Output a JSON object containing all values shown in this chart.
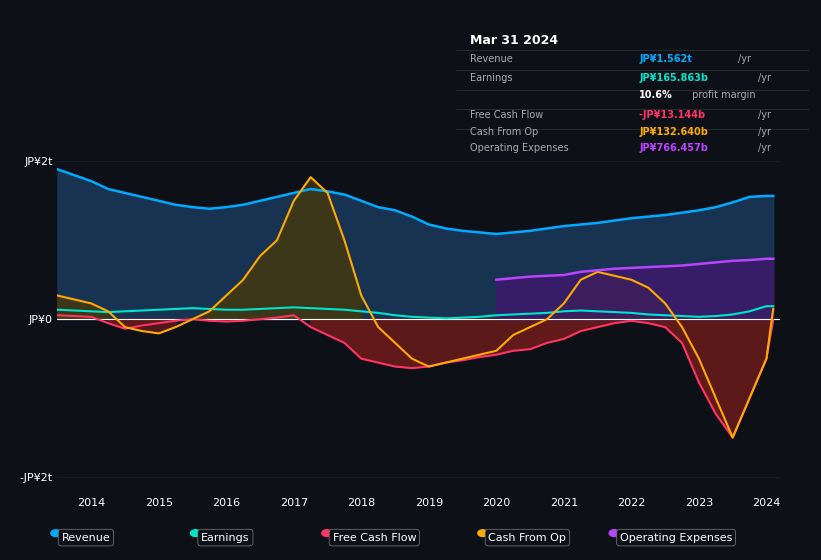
{
  "bg_color": "#0d1117",
  "plot_bg_color": "#0d1117",
  "title": "Mar 31 2024",
  "years": [
    2013.5,
    2014,
    2014.25,
    2014.5,
    2014.75,
    2015,
    2015.25,
    2015.5,
    2015.75,
    2016,
    2016.25,
    2016.5,
    2016.75,
    2017,
    2017.25,
    2017.5,
    2017.75,
    2018,
    2018.25,
    2018.5,
    2018.75,
    2019,
    2019.25,
    2019.5,
    2019.75,
    2020,
    2020.25,
    2020.5,
    2020.75,
    2021,
    2021.25,
    2021.5,
    2021.75,
    2022,
    2022.25,
    2022.5,
    2022.75,
    2023,
    2023.25,
    2023.5,
    2023.75,
    2024,
    2024.1
  ],
  "revenue": [
    1.9,
    1.75,
    1.65,
    1.6,
    1.55,
    1.5,
    1.45,
    1.42,
    1.4,
    1.42,
    1.45,
    1.5,
    1.55,
    1.6,
    1.65,
    1.62,
    1.58,
    1.5,
    1.42,
    1.38,
    1.3,
    1.2,
    1.15,
    1.12,
    1.1,
    1.08,
    1.1,
    1.12,
    1.15,
    1.18,
    1.2,
    1.22,
    1.25,
    1.28,
    1.3,
    1.32,
    1.35,
    1.38,
    1.42,
    1.48,
    1.55,
    1.562,
    1.562
  ],
  "earnings": [
    0.12,
    0.1,
    0.09,
    0.1,
    0.11,
    0.12,
    0.13,
    0.14,
    0.13,
    0.12,
    0.12,
    0.13,
    0.14,
    0.15,
    0.14,
    0.13,
    0.12,
    0.1,
    0.08,
    0.05,
    0.03,
    0.02,
    0.01,
    0.02,
    0.03,
    0.05,
    0.06,
    0.07,
    0.08,
    0.1,
    0.11,
    0.1,
    0.09,
    0.08,
    0.06,
    0.05,
    0.04,
    0.03,
    0.04,
    0.06,
    0.1,
    0.165,
    0.165
  ],
  "free_cash_flow": [
    0.05,
    0.03,
    -0.05,
    -0.12,
    -0.08,
    -0.05,
    -0.02,
    0.0,
    -0.02,
    -0.03,
    -0.02,
    0.0,
    0.02,
    0.05,
    -0.1,
    -0.2,
    -0.3,
    -0.5,
    -0.55,
    -0.6,
    -0.62,
    -0.6,
    -0.55,
    -0.52,
    -0.48,
    -0.45,
    -0.4,
    -0.38,
    -0.3,
    -0.25,
    -0.15,
    -0.1,
    -0.05,
    -0.02,
    -0.05,
    -0.1,
    -0.3,
    -0.8,
    -1.2,
    -1.5,
    -1.0,
    -0.5,
    -0.013
  ],
  "cash_from_op": [
    0.3,
    0.2,
    0.1,
    -0.1,
    -0.15,
    -0.18,
    -0.1,
    0.0,
    0.1,
    0.3,
    0.5,
    0.8,
    1.0,
    1.5,
    1.8,
    1.6,
    1.0,
    0.3,
    -0.1,
    -0.3,
    -0.5,
    -0.6,
    -0.55,
    -0.5,
    -0.45,
    -0.4,
    -0.2,
    -0.1,
    0.0,
    0.2,
    0.5,
    0.6,
    0.55,
    0.5,
    0.4,
    0.2,
    -0.1,
    -0.5,
    -1.0,
    -1.5,
    -1.0,
    -0.5,
    0.132
  ],
  "operating_expenses": [
    null,
    null,
    null,
    null,
    null,
    null,
    null,
    null,
    null,
    null,
    null,
    null,
    null,
    null,
    null,
    null,
    null,
    null,
    null,
    null,
    null,
    null,
    null,
    null,
    null,
    0.5,
    0.52,
    0.54,
    0.55,
    0.56,
    0.6,
    0.62,
    0.64,
    0.65,
    0.66,
    0.67,
    0.68,
    0.7,
    0.72,
    0.74,
    0.75,
    0.766,
    0.766
  ],
  "ylim": [
    -2.2,
    2.2
  ],
  "xlim": [
    2013.5,
    2024.2
  ],
  "yticks": [
    -2,
    0,
    2
  ],
  "ytick_labels": [
    "-JP¥2t",
    "JP¥0",
    "JP¥2t"
  ],
  "xtick_years": [
    2014,
    2015,
    2016,
    2017,
    2018,
    2019,
    2020,
    2021,
    2022,
    2023,
    2024
  ],
  "revenue_color": "#00aaff",
  "earnings_color": "#00e5cc",
  "fcf_color": "#ff3366",
  "cashop_color": "#ffaa00",
  "opex_color": "#bb44ff",
  "revenue_fill_color": "#1a3a5c",
  "fcf_fill_neg_color": "#6b1a1a",
  "opex_fill_color": "#3d1a6b",
  "cashop_fill_pos_color": "#4a3a00",
  "cashop_fill_neg_color": "#6b1a1a",
  "legend_items": [
    {
      "label": "Revenue",
      "color": "#00aaff"
    },
    {
      "label": "Earnings",
      "color": "#00e5cc"
    },
    {
      "label": "Free Cash Flow",
      "color": "#ff3366"
    },
    {
      "label": "Cash From Op",
      "color": "#ffaa00"
    },
    {
      "label": "Operating Expenses",
      "color": "#bb44ff"
    }
  ],
  "info_box": {
    "date": "Mar 31 2024",
    "revenue_val": "JP¥1.562t /yr",
    "revenue_color": "#00aaff",
    "earnings_val": "JP¥165.863b /yr",
    "earnings_color": "#00e5cc",
    "profit_margin": "10.6% profit margin",
    "fcf_val": "-JP¥13.144b /yr",
    "fcf_color": "#ff3366",
    "cashop_val": "JP¥132.640b /yr",
    "cashop_color": "#ffaa00",
    "opex_val": "JP¥766.457b /yr",
    "opex_color": "#bb44ff"
  }
}
